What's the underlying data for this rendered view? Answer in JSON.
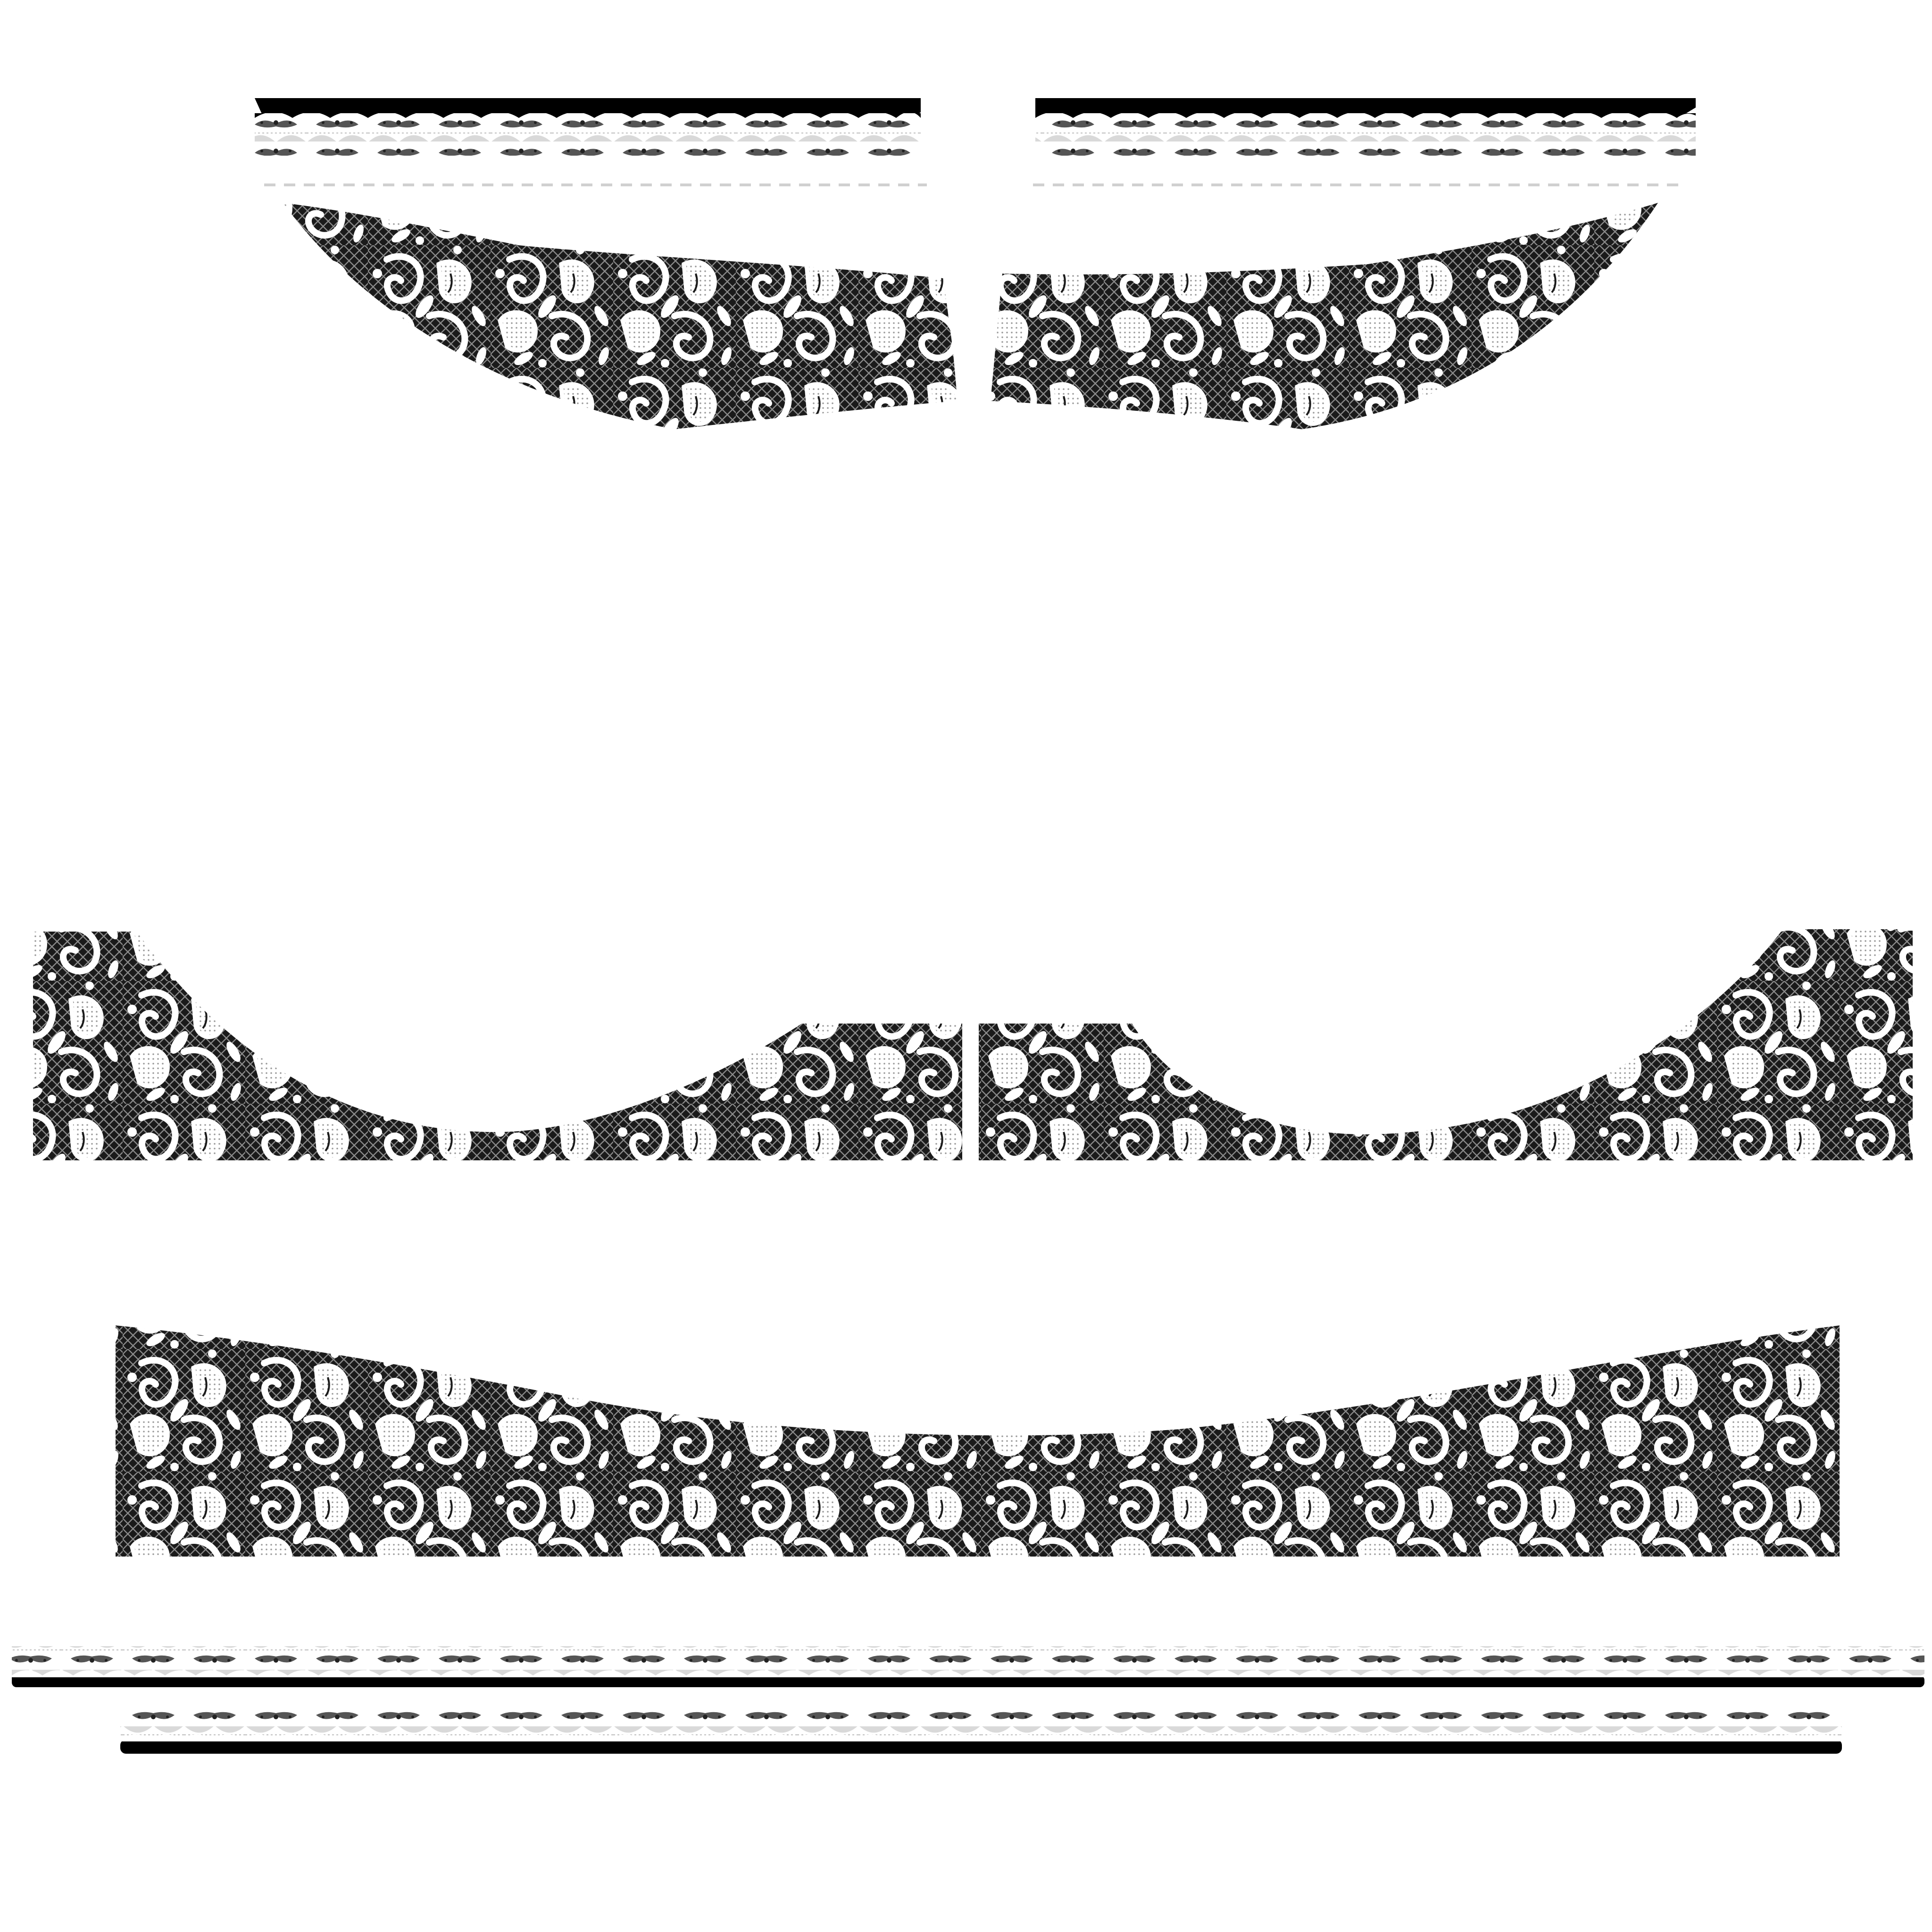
{
  "colors": {
    "background": "#ffffff",
    "net": "#1a1a1a",
    "mesh": "#8a8a8a",
    "lace": "#ffffff",
    "band": "#000000",
    "lace_shade": "#d9d9d9"
  },
  "pieces": [
    {
      "name": "top-left-waistband",
      "kind": "waistband"
    },
    {
      "name": "top-right-waistband",
      "kind": "waistband"
    },
    {
      "name": "top-left-lace-cup",
      "kind": "lace-panel"
    },
    {
      "name": "top-right-lace-cup",
      "kind": "lace-panel"
    },
    {
      "name": "middle-left-lace-panel",
      "kind": "lace-panel"
    },
    {
      "name": "middle-right-lace-panel",
      "kind": "lace-panel"
    },
    {
      "name": "bottom-lace-panel",
      "kind": "lace-panel"
    },
    {
      "name": "long-trim-strip",
      "kind": "scallop-trim"
    },
    {
      "name": "short-trim-strip",
      "kind": "scallop-trim"
    }
  ]
}
